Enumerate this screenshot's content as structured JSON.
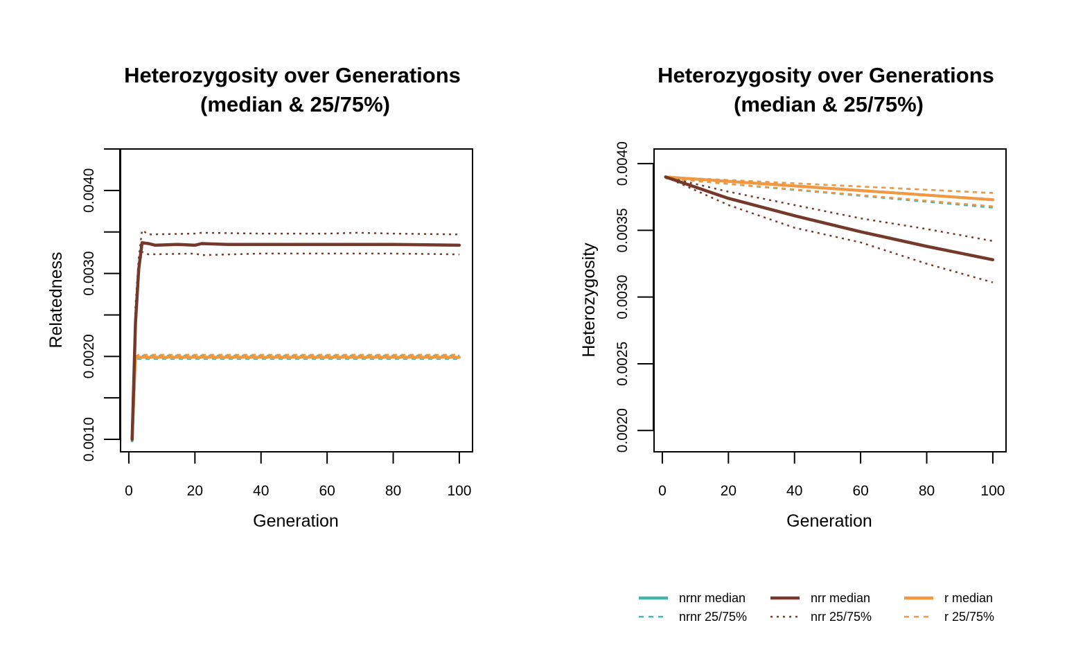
{
  "colors": {
    "nrnr": "#45B5AA",
    "nrr": "#74392A",
    "r": "#F5973F"
  },
  "chart_data": [
    {
      "type": "line",
      "title_line1": "Heterozygosity over Generations",
      "title_line2": "(median & 25/75%)",
      "xlabel": "Generation",
      "ylabel": "Relatedness",
      "xlim": [
        -2.5,
        104
      ],
      "ylim": [
        0.00085,
        0.0045
      ],
      "x_ticks": [
        0,
        20,
        40,
        60,
        80,
        100
      ],
      "x_tick_labels": [
        "0",
        "20",
        "40",
        "60",
        "80",
        "100"
      ],
      "y_ticks": [
        0.001,
        0.0015,
        0.002,
        0.0025,
        0.003,
        0.0035,
        0.004,
        0.0045
      ],
      "y_tick_labels": [
        "0.0010",
        "",
        "0.0020",
        "",
        "0.0030",
        "",
        "0.0040",
        ""
      ],
      "series": [
        {
          "group": "nrnr",
          "stat": "median",
          "points": [
            [
              1,
              0.00098
            ],
            [
              2,
              0.00198
            ],
            [
              3,
              0.00199
            ],
            [
              100,
              0.00199
            ]
          ]
        },
        {
          "group": "nrnr",
          "stat": "q25",
          "points": [
            [
              1,
              0.00098
            ],
            [
              2,
              0.00196
            ],
            [
              3,
              0.00197
            ],
            [
              100,
              0.00197
            ]
          ]
        },
        {
          "group": "nrnr",
          "stat": "q75",
          "points": [
            [
              1,
              0.00098
            ],
            [
              2,
              0.002
            ],
            [
              3,
              0.00201
            ],
            [
              100,
              0.00201
            ]
          ]
        },
        {
          "group": "r",
          "stat": "median",
          "points": [
            [
              1,
              0.001
            ],
            [
              2,
              0.00198
            ],
            [
              3,
              0.00199
            ],
            [
              100,
              0.00199
            ]
          ]
        },
        {
          "group": "r",
          "stat": "q25",
          "points": [
            [
              1,
              0.001
            ],
            [
              2,
              0.00197
            ],
            [
              3,
              0.00198
            ],
            [
              100,
              0.00198
            ]
          ]
        },
        {
          "group": "r",
          "stat": "q75",
          "points": [
            [
              1,
              0.001
            ],
            [
              2,
              0.002
            ],
            [
              3,
              0.00202
            ],
            [
              100,
              0.00202
            ]
          ]
        },
        {
          "group": "nrr",
          "stat": "q25",
          "points": [
            [
              1,
              0.001
            ],
            [
              2,
              0.0024
            ],
            [
              3,
              0.00304
            ],
            [
              4,
              0.00326
            ],
            [
              6,
              0.00323
            ],
            [
              20,
              0.00324
            ],
            [
              22,
              0.00322
            ],
            [
              40,
              0.00324
            ],
            [
              60,
              0.00324
            ],
            [
              80,
              0.00324
            ],
            [
              100,
              0.00323
            ]
          ]
        },
        {
          "group": "nrr",
          "stat": "q75",
          "points": [
            [
              1,
              0.001
            ],
            [
              2,
              0.0026
            ],
            [
              3,
              0.00318
            ],
            [
              4,
              0.00352
            ],
            [
              6,
              0.00347
            ],
            [
              20,
              0.00348
            ],
            [
              22,
              0.00349
            ],
            [
              40,
              0.00348
            ],
            [
              60,
              0.00348
            ],
            [
              69,
              0.00349
            ],
            [
              80,
              0.00348
            ],
            [
              100,
              0.00347
            ]
          ]
        },
        {
          "group": "nrr",
          "stat": "median",
          "points": [
            [
              1,
              0.001
            ],
            [
              2,
              0.0024
            ],
            [
              3,
              0.00305
            ],
            [
              4,
              0.00337
            ],
            [
              6,
              0.00336
            ],
            [
              8,
              0.00334
            ],
            [
              15,
              0.00335
            ],
            [
              20,
              0.00334
            ],
            [
              22,
              0.00336
            ],
            [
              30,
              0.00335
            ],
            [
              40,
              0.00335
            ],
            [
              60,
              0.00335
            ],
            [
              80,
              0.00335
            ],
            [
              100,
              0.00334
            ]
          ]
        }
      ]
    },
    {
      "type": "line",
      "title_line1": "Heterozygosity over Generations",
      "title_line2": "(median & 25/75%)",
      "xlabel": "Generation",
      "ylabel": "Heterozygosity",
      "xlim": [
        -2.5,
        104
      ],
      "ylim": [
        0.00184,
        0.00411
      ],
      "x_ticks": [
        0,
        20,
        40,
        60,
        80,
        100
      ],
      "x_tick_labels": [
        "0",
        "20",
        "40",
        "60",
        "80",
        "100"
      ],
      "y_ticks": [
        0.002,
        0.0025,
        0.003,
        0.0035,
        0.004
      ],
      "y_tick_labels": [
        "0.0020",
        "0.0025",
        "0.0030",
        "0.0035",
        "0.0040"
      ],
      "series": [
        {
          "group": "nrnr",
          "stat": "q25",
          "points": [
            [
              1,
              0.00389
            ],
            [
              100,
              0.00367
            ]
          ]
        },
        {
          "group": "nrnr",
          "stat": "q75",
          "points": [
            [
              1,
              0.0039
            ],
            [
              100,
              0.00378
            ]
          ]
        },
        {
          "group": "r",
          "stat": "q25",
          "points": [
            [
              1,
              0.00389
            ],
            [
              100,
              0.00368
            ]
          ]
        },
        {
          "group": "r",
          "stat": "q75",
          "points": [
            [
              1,
              0.0039
            ],
            [
              100,
              0.00378
            ]
          ]
        },
        {
          "group": "nrnr",
          "stat": "median",
          "points": [
            [
              1,
              0.0039
            ],
            [
              100,
              0.00373
            ]
          ]
        },
        {
          "group": "r",
          "stat": "median",
          "points": [
            [
              1,
              0.0039
            ],
            [
              100,
              0.00373
            ]
          ]
        },
        {
          "group": "nrr",
          "stat": "q25",
          "points": [
            [
              1,
              0.0039
            ],
            [
              20,
              0.00369
            ],
            [
              40,
              0.00352
            ],
            [
              60,
              0.00341
            ],
            [
              80,
              0.00325
            ],
            [
              100,
              0.00311
            ]
          ]
        },
        {
          "group": "nrr",
          "stat": "q75",
          "points": [
            [
              1,
              0.0039
            ],
            [
              20,
              0.00379
            ],
            [
              40,
              0.00369
            ],
            [
              60,
              0.00359
            ],
            [
              80,
              0.00351
            ],
            [
              100,
              0.00342
            ]
          ]
        },
        {
          "group": "nrr",
          "stat": "median",
          "points": [
            [
              1,
              0.0039
            ],
            [
              20,
              0.00374
            ],
            [
              40,
              0.00361
            ],
            [
              60,
              0.00349
            ],
            [
              80,
              0.00338
            ],
            [
              100,
              0.00328
            ]
          ]
        }
      ]
    }
  ],
  "legend": [
    {
      "label": "nrnr median",
      "group": "nrnr",
      "style": "solid"
    },
    {
      "label": "nrnr 25/75%",
      "group": "nrnr",
      "style": "dashed"
    },
    {
      "label": "nrr median",
      "group": "nrr",
      "style": "solid"
    },
    {
      "label": "nrr 25/75%",
      "group": "nrr",
      "style": "dashed"
    },
    {
      "label": "r median",
      "group": "r",
      "style": "solid"
    },
    {
      "label": "r 25/75%",
      "group": "r",
      "style": "dashed"
    }
  ]
}
